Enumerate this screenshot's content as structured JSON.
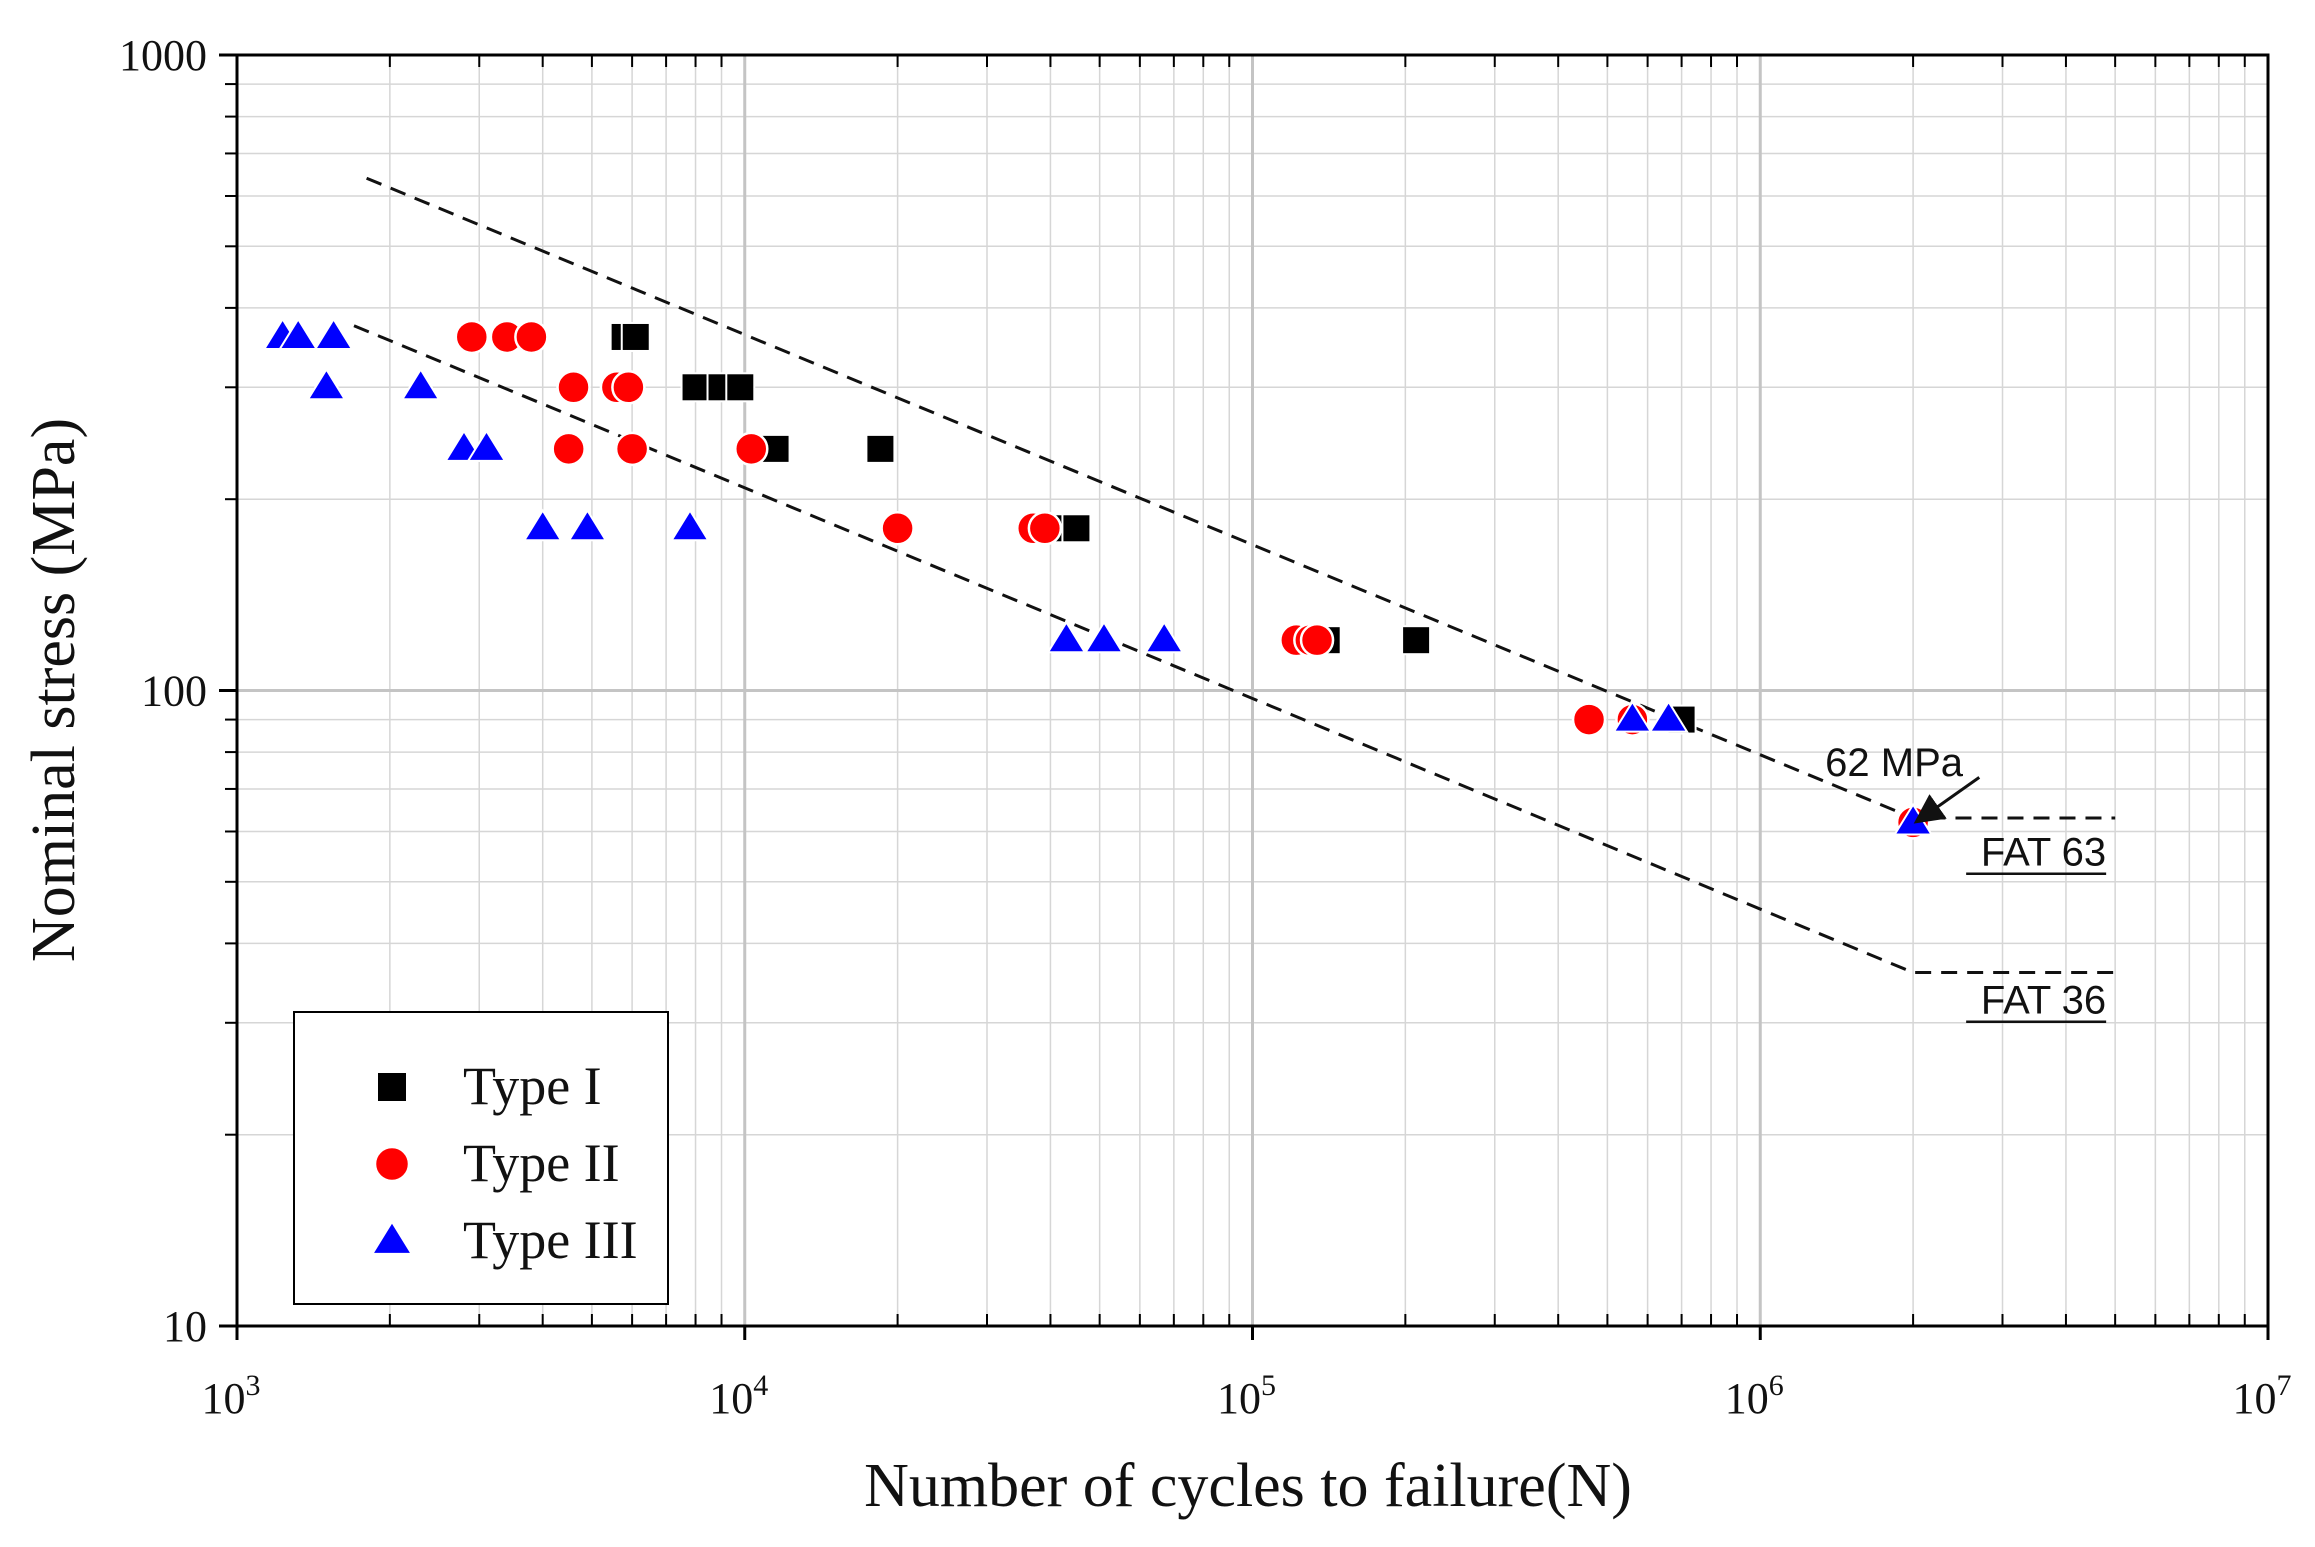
{
  "chart_data": {
    "type": "scatter",
    "xlabel": "Number of cycles to failure(N)",
    "ylabel": "Nominal stress (MPa)",
    "xscale": "log",
    "yscale": "log",
    "xlim": [
      1000,
      10000000
    ],
    "ylim": [
      10,
      1000
    ],
    "x_ticks": [
      {
        "value": 1000,
        "base": "10",
        "exp": "3"
      },
      {
        "value": 10000,
        "base": "10",
        "exp": "4"
      },
      {
        "value": 100000,
        "base": "10",
        "exp": "5"
      },
      {
        "value": 1000000,
        "base": "10",
        "exp": "6"
      },
      {
        "value": 10000000,
        "base": "10",
        "exp": "7"
      }
    ],
    "y_ticks": [
      {
        "value": 10,
        "label": "10"
      },
      {
        "value": 100,
        "label": "100"
      },
      {
        "value": 1000,
        "label": "1000"
      }
    ],
    "grid": true,
    "legend_position": "bottom-left",
    "series": [
      {
        "name": "Type I",
        "marker": "square",
        "color": "#000000",
        "points": [
          [
            5800,
            360
          ],
          [
            6100,
            360
          ],
          [
            8000,
            300
          ],
          [
            9000,
            300
          ],
          [
            9800,
            300
          ],
          [
            11500,
            240
          ],
          [
            18500,
            240
          ],
          [
            42000,
            180
          ],
          [
            45000,
            180
          ],
          [
            140000,
            120
          ],
          [
            210000,
            120
          ],
          [
            700000,
            90
          ]
        ]
      },
      {
        "name": "Type II",
        "marker": "circle",
        "color": "#ff0000",
        "points": [
          [
            2900,
            360
          ],
          [
            3400,
            360
          ],
          [
            3800,
            360
          ],
          [
            4600,
            300
          ],
          [
            5600,
            300
          ],
          [
            5900,
            300
          ],
          [
            4500,
            240
          ],
          [
            6000,
            240
          ],
          [
            10300,
            240
          ],
          [
            20000,
            180
          ],
          [
            37000,
            180
          ],
          [
            39000,
            180
          ],
          [
            122000,
            120
          ],
          [
            130000,
            120
          ],
          [
            134000,
            120
          ],
          [
            460000,
            90
          ],
          [
            560000,
            90
          ],
          [
            2000000,
            62
          ]
        ]
      },
      {
        "name": "Type III",
        "marker": "triangle",
        "color": "#0000ff",
        "points": [
          [
            1230,
            360
          ],
          [
            1320,
            360
          ],
          [
            1550,
            360
          ],
          [
            1500,
            300
          ],
          [
            2300,
            300
          ],
          [
            2800,
            240
          ],
          [
            3100,
            240
          ],
          [
            4000,
            180
          ],
          [
            4900,
            180
          ],
          [
            7800,
            180
          ],
          [
            43000,
            120
          ],
          [
            51000,
            120
          ],
          [
            67000,
            120
          ],
          [
            560000,
            90
          ],
          [
            660000,
            90
          ],
          [
            2000000,
            62
          ]
        ]
      }
    ],
    "reference_lines": [
      {
        "name": "FAT 63",
        "points": [
          [
            1800,
            640
          ],
          [
            2000000,
            63
          ],
          [
            5000000,
            63
          ]
        ]
      },
      {
        "name": "FAT 36",
        "points": [
          [
            1700,
            375
          ],
          [
            2000000,
            36
          ],
          [
            5000000,
            36
          ]
        ]
      }
    ],
    "annotations": [
      {
        "text": "62 MPa",
        "at": [
          2650000,
          76
        ],
        "arrow_from": [
          2700000,
          73
        ],
        "arrow_to": [
          2050000,
          62.5
        ]
      },
      {
        "text": "FAT 63",
        "at": [
          4800000,
          53
        ],
        "underline": true
      },
      {
        "text": "FAT 36",
        "at": [
          4800000,
          31
        ],
        "underline": true
      }
    ]
  }
}
